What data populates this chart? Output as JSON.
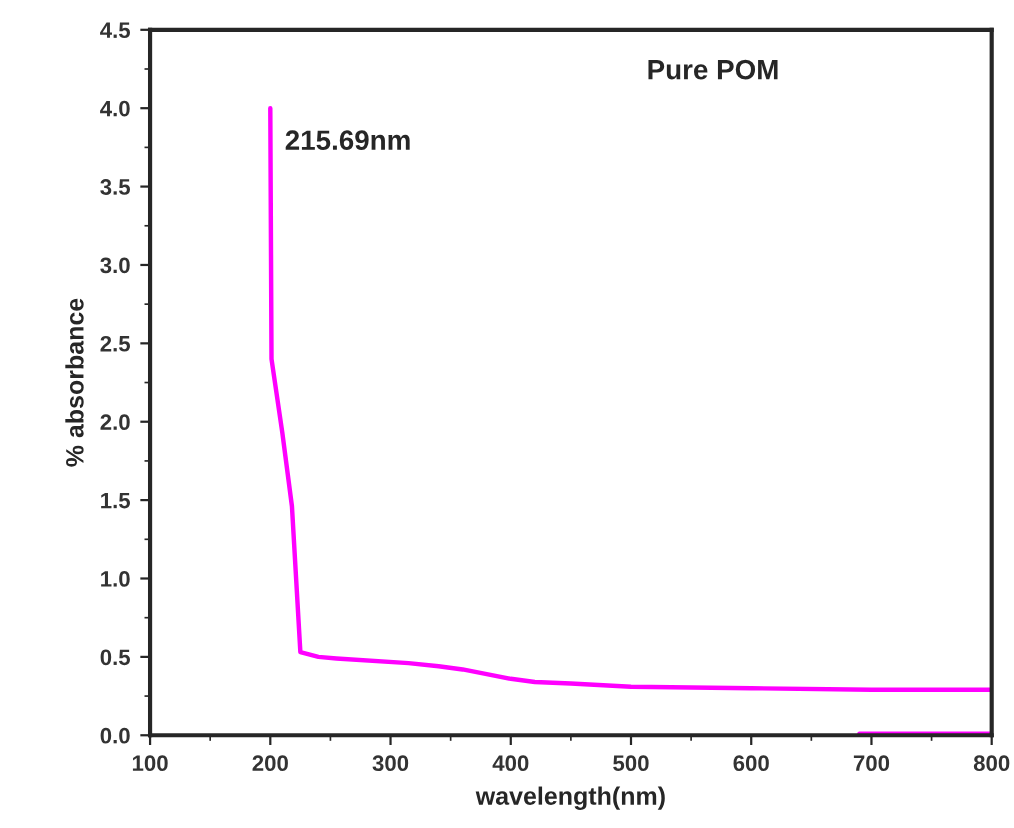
{
  "chart_data": {
    "type": "line",
    "xlabel": "wavelength(nm)",
    "ylabel": "% absorbance",
    "annotations": [
      "Pure POM",
      "215.69nm"
    ],
    "series": [
      {
        "color": "#ff00ff",
        "x": [
          200,
          201,
          210,
          218,
          225,
          240,
          255,
          315,
          340,
          360,
          380,
          400,
          420,
          450,
          500,
          600,
          700,
          800
        ],
        "values": [
          4.0,
          2.4,
          1.93,
          1.46,
          0.53,
          0.5,
          0.49,
          0.46,
          0.44,
          0.42,
          0.39,
          0.36,
          0.34,
          0.33,
          0.31,
          0.3,
          0.29,
          0.29
        ]
      },
      {
        "color": "#ff00ff",
        "x": [
          690,
          800
        ],
        "values": [
          0.01,
          0.01
        ]
      }
    ],
    "xlim": [
      100,
      800
    ],
    "ylim": [
      0,
      4.5
    ],
    "xticks": [
      100,
      200,
      300,
      400,
      500,
      600,
      700,
      800
    ],
    "yticks": [
      {
        "value": 0,
        "label": "0.0"
      },
      {
        "value": 0.5,
        "label": "0.5"
      },
      {
        "value": 1,
        "label": "1.0"
      },
      {
        "value": 1.5,
        "label": "1.5"
      },
      {
        "value": 2,
        "label": "2.0"
      },
      {
        "value": 2.5,
        "label": "2.5"
      },
      {
        "value": 3,
        "label": "3.0"
      },
      {
        "value": 3.5,
        "label": "3.5"
      },
      {
        "value": 4,
        "label": "4.0"
      },
      {
        "value": 4.5,
        "label": "4.5"
      }
    ],
    "grid": false,
    "legend": false,
    "marker": "none",
    "line_style": "solid"
  }
}
